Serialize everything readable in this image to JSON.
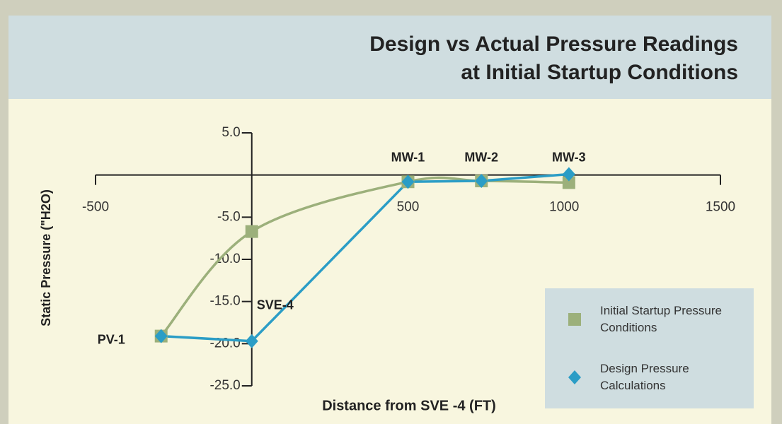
{
  "chart_data": {
    "type": "line",
    "title": [
      "Design vs Actual Pressure Readings",
      "at Initial Startup Conditions"
    ],
    "x_label": "Distance from SVE -4 (FT)",
    "y_label": "Static Pressure (\"H2O)",
    "x": [
      -290,
      0,
      500,
      735,
      1015
    ],
    "point_labels": [
      "PV-1",
      "SVE-4",
      "MW-1",
      "MW-2",
      "MW-3"
    ],
    "series": [
      {
        "name": "Initial Startup Pressure Conditions",
        "color": "#9cb07b",
        "marker": "square",
        "smooth": true,
        "values": [
          -19.1,
          -6.7,
          -0.8,
          -0.7,
          -0.9
        ]
      },
      {
        "name": "Design Pressure Calculations",
        "color": "#2b9dc6",
        "marker": "diamond",
        "smooth": false,
        "values": [
          -19.1,
          -19.7,
          -0.8,
          -0.7,
          0.1
        ]
      }
    ],
    "xlim": [
      -500,
      1500
    ],
    "xticks": [
      -500,
      500,
      1000,
      1500
    ],
    "ylim": [
      -25,
      5
    ],
    "yticks": [
      {
        "value": 5,
        "label": "5.0"
      },
      {
        "value": -5,
        "label": "-5.0"
      },
      {
        "value": -10,
        "label": "-10.0"
      },
      {
        "value": -15,
        "label": "-15.0"
      },
      {
        "value": -20,
        "label": "-20.0"
      },
      {
        "value": -25,
        "label": "-25.0"
      }
    ]
  }
}
